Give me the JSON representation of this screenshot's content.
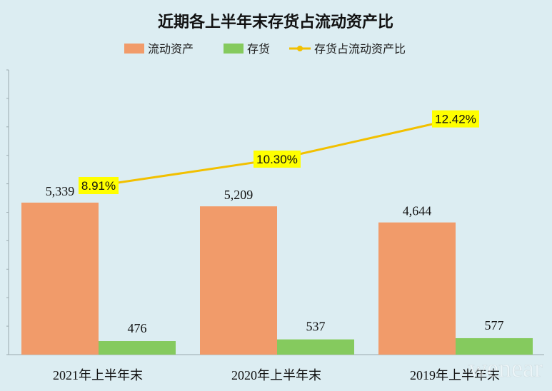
{
  "chart_data": {
    "type": "bar",
    "title": "近期各上半年末存货占流动资产比",
    "categories": [
      "2021年上半年末",
      "2020年上半年末",
      "2019年上半年末"
    ],
    "series": [
      {
        "name": "流动资产",
        "kind": "bar",
        "color": "#f4a474",
        "values": [
          5339,
          5209,
          4644
        ],
        "labels": [
          "5,339",
          "5,209",
          "4,644"
        ]
      },
      {
        "name": "存货",
        "kind": "bar",
        "color": "#8ccf5f",
        "values": [
          476,
          537,
          577
        ],
        "labels": [
          "476",
          "537",
          "577"
        ]
      },
      {
        "name": "存货占流动资产比",
        "kind": "line",
        "color": "#f2c000",
        "values": [
          8.91,
          10.3,
          12.42
        ],
        "labels": [
          "8.91%",
          "10.30%",
          "12.42%"
        ]
      }
    ],
    "legend_position": "top",
    "grid": false,
    "ylim": [
      0,
      10000
    ],
    "y2lim": [
      0,
      15
    ],
    "label_bg": "#ffff00"
  },
  "watermark": "wenear"
}
